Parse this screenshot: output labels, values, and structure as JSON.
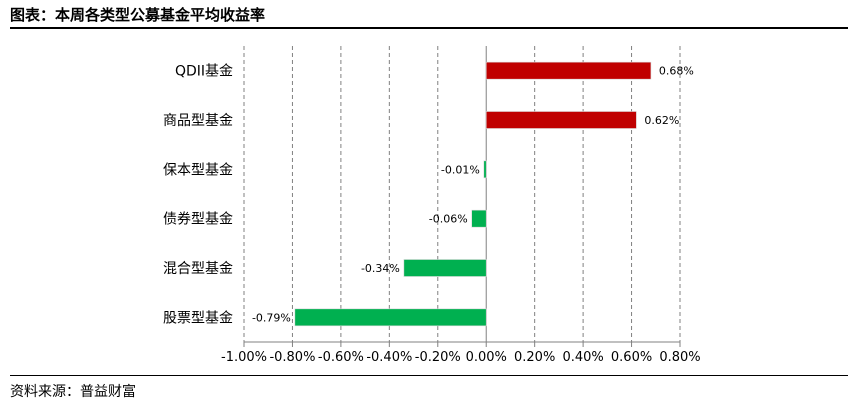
{
  "header": {
    "title": "图表：本周各类型公募基金平均收益率"
  },
  "footer": {
    "source": "资料来源：普益财富"
  },
  "colors": {
    "positive": "#C00000",
    "negative": "#00B050",
    "grid": "#808080",
    "axis": "#808080"
  },
  "chart_data": {
    "type": "bar",
    "orientation": "horizontal",
    "title": "图表：本周各类型公募基金平均收益率",
    "xlabel": "",
    "ylabel": "",
    "categories": [
      "QDII基金",
      "商品型基金",
      "保本型基金",
      "债券型基金",
      "混合型基金",
      "股票型基金"
    ],
    "values": [
      0.68,
      0.62,
      -0.01,
      -0.06,
      -0.34,
      -0.79
    ],
    "data_labels": [
      "0.68%",
      "0.62%",
      "-0.01%",
      "-0.06%",
      "-0.34%",
      "-0.79%"
    ],
    "xlim": [
      -1.0,
      0.8
    ],
    "xticks": [
      -1.0,
      -0.8,
      -0.6,
      -0.4,
      -0.2,
      0.0,
      0.2,
      0.4,
      0.6,
      0.8
    ],
    "xtick_labels": [
      "-1.00%",
      "-0.80%",
      "-0.60%",
      "-0.40%",
      "-0.20%",
      "0.00%",
      "0.20%",
      "0.40%",
      "0.60%",
      "0.80%"
    ],
    "grid": "vertical-dashed",
    "legend": "none"
  }
}
